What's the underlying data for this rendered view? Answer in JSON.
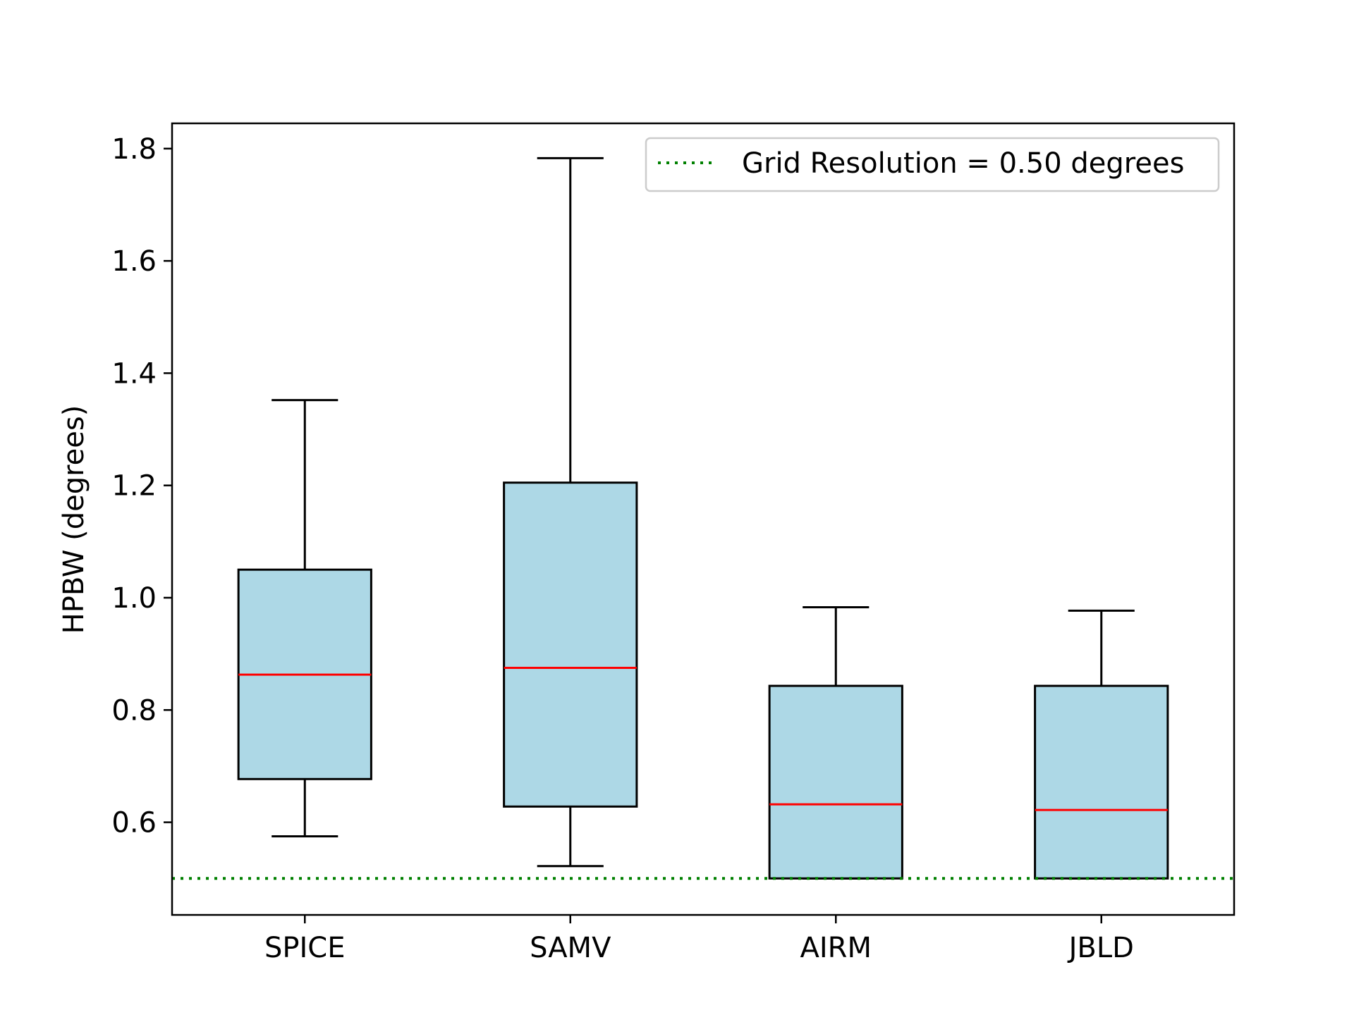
{
  "chart_data": {
    "type": "boxplot",
    "ylabel": "HPBW (degrees)",
    "xlabel": "",
    "ylim": [
      0.435,
      1.845
    ],
    "yticks": [
      0.6,
      0.8,
      1.0,
      1.2,
      1.4,
      1.6,
      1.8
    ],
    "ytick_labels": [
      "0.6",
      "0.8",
      "1.0",
      "1.2",
      "1.4",
      "1.6",
      "1.8"
    ],
    "grid": false,
    "legend_position": "top-right",
    "categories": [
      "SPICE",
      "SAMV",
      "AIRM",
      "JBLD"
    ],
    "boxes": [
      {
        "label": "SPICE",
        "whisker_low": 0.575,
        "q1": 0.677,
        "median": 0.863,
        "q3": 1.05,
        "whisker_high": 1.352
      },
      {
        "label": "SAMV",
        "whisker_low": 0.522,
        "q1": 0.628,
        "median": 0.875,
        "q3": 1.205,
        "whisker_high": 1.783
      },
      {
        "label": "AIRM",
        "whisker_low": 0.5,
        "q1": 0.5,
        "median": 0.632,
        "q3": 0.843,
        "whisker_high": 0.983
      },
      {
        "label": "JBLD",
        "whisker_low": 0.5,
        "q1": 0.5,
        "median": 0.622,
        "q3": 0.843,
        "whisker_high": 0.977
      }
    ],
    "reference_line": {
      "label": "Grid Resolution = 0.50 degrees",
      "value": 0.5,
      "style": "dotted"
    },
    "colors": {
      "box_fill": "#add8e6",
      "box_edge": "#000000",
      "median": "#ff0000",
      "reference_line": "#008000",
      "legend_border": "#cccccc"
    }
  }
}
